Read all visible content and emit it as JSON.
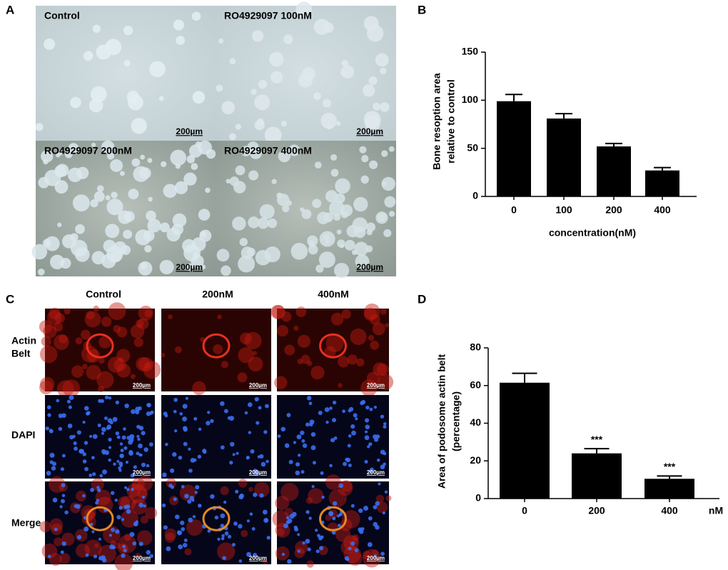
{
  "panel_labels": [
    "A",
    "B",
    "C",
    "D"
  ],
  "panel_a": {
    "images": [
      {
        "label": "Control",
        "scale": "200µm"
      },
      {
        "label": "RO4929097 100nM",
        "scale": "200µm"
      },
      {
        "label": "RO4929097 200nM",
        "scale": "200µm"
      },
      {
        "label": "RO4929097 400nM",
        "scale": "200µm"
      }
    ]
  },
  "panel_c": {
    "columns": [
      "Control",
      "200nM",
      "400nM"
    ],
    "rows": [
      [
        "Actin",
        "Belt"
      ],
      [
        "DAPI"
      ],
      [
        "Merge"
      ]
    ],
    "scale": "200µm"
  },
  "chart_data": [
    {
      "type": "bar",
      "ylabel": [
        "Bone resoption area",
        "relative to control"
      ],
      "xlabel": "concentration(nM)",
      "categories": [
        "0",
        "100",
        "200",
        "400"
      ],
      "values": [
        99,
        81,
        52,
        27
      ],
      "errors": [
        7,
        5,
        3,
        3
      ],
      "color": "#000000",
      "ylim": [
        0,
        150
      ],
      "yticks": [
        0,
        50,
        100,
        150
      ]
    },
    {
      "type": "bar",
      "ylabel": [
        "Area of podosome actin belt",
        "(percentage)"
      ],
      "xunit": "nM",
      "categories": [
        "0",
        "200",
        "400"
      ],
      "values": [
        61.5,
        24,
        10.5
      ],
      "errors": [
        5,
        2.5,
        1.5
      ],
      "annotations": [
        "***",
        "***"
      ],
      "color": "#000000",
      "ylim": [
        0,
        80
      ],
      "yticks": [
        0,
        20,
        40,
        60,
        80
      ]
    }
  ]
}
